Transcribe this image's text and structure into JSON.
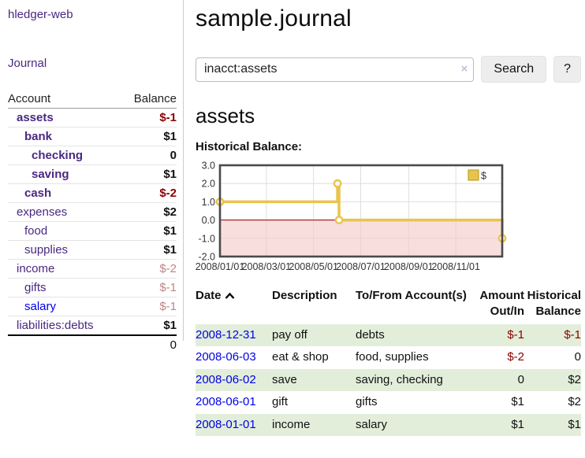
{
  "app_title": "hledger-web",
  "sidebar": {
    "journal_link": "Journal",
    "accounts": {
      "col_account": "Account",
      "col_balance": "Balance",
      "rows": [
        {
          "name": "assets",
          "balance": "$-1"
        },
        {
          "name": "bank",
          "balance": "$1"
        },
        {
          "name": "checking",
          "balance": "0"
        },
        {
          "name": "saving",
          "balance": "$1"
        },
        {
          "name": "cash",
          "balance": "$-2"
        },
        {
          "name": "expenses",
          "balance": "$2"
        },
        {
          "name": "food",
          "balance": "$1"
        },
        {
          "name": "supplies",
          "balance": "$1"
        },
        {
          "name": "income",
          "balance": "$-2"
        },
        {
          "name": "gifts",
          "balance": "$-1"
        },
        {
          "name": "salary",
          "balance": "$-1"
        },
        {
          "name": "liabilities:debts",
          "balance": "$1"
        }
      ],
      "total": "0"
    }
  },
  "header": {
    "title": "sample.journal"
  },
  "search": {
    "value": "inacct:assets",
    "clear_icon": "×",
    "search_button": "Search",
    "help_button": "?"
  },
  "account_page": {
    "heading": "assets",
    "chart_title": "Historical Balance:"
  },
  "chart_data": {
    "type": "line",
    "step": true,
    "title": "Historical Balance",
    "legend": "$",
    "x_range": [
      "2008-01-01",
      "2008-12-31"
    ],
    "ylim": [
      -2,
      3
    ],
    "yticks": [
      "3.0",
      "2.0",
      "1.0",
      "0.0",
      "-1.0",
      "-2.0"
    ],
    "xticks": [
      {
        "label": "2008/01/01",
        "date": "2008-01-01"
      },
      {
        "label": "2008/03/01",
        "date": "2008-03-01"
      },
      {
        "label": "2008/05/01",
        "date": "2008-05-01"
      },
      {
        "label": "2008/07/01",
        "date": "2008-07-01"
      },
      {
        "label": "2008/09/01",
        "date": "2008-09-01"
      },
      {
        "label": "2008/11/01",
        "date": "2008-11-01"
      }
    ],
    "points": [
      {
        "date": "2008-01-01",
        "value": 1
      },
      {
        "date": "2008-06-01",
        "value": 2
      },
      {
        "date": "2008-06-03",
        "value": 0
      },
      {
        "date": "2008-12-31",
        "value": -1
      }
    ],
    "colors": {
      "line": "#e8c44e",
      "marker_fill": "#fffdf4",
      "negative_fill": "#f6c9c9",
      "zero_line": "#8b0000",
      "border": "#4a4a4a",
      "grid": "#dedede",
      "legend_border": "#bfa22e"
    }
  },
  "register": {
    "headers": {
      "date": "Date",
      "description": "Description",
      "accounts": "To/From Account(s)",
      "amount": "Amount Out/In",
      "balance": "Historical Balance"
    },
    "rows": [
      {
        "date": "2008-12-31",
        "description": "pay off",
        "accounts": "debts",
        "amount": "$-1",
        "balance": "$-1"
      },
      {
        "date": "2008-06-03",
        "description": "eat & shop",
        "accounts": "food, supplies",
        "amount": "$-2",
        "balance": "0"
      },
      {
        "date": "2008-06-02",
        "description": "save",
        "accounts": "saving, checking",
        "amount": "0",
        "balance": "$2"
      },
      {
        "date": "2008-06-01",
        "description": "gift",
        "accounts": "gifts",
        "amount": "$1",
        "balance": "$2"
      },
      {
        "date": "2008-01-01",
        "description": "income",
        "accounts": "salary",
        "amount": "$1",
        "balance": "$1"
      }
    ]
  }
}
